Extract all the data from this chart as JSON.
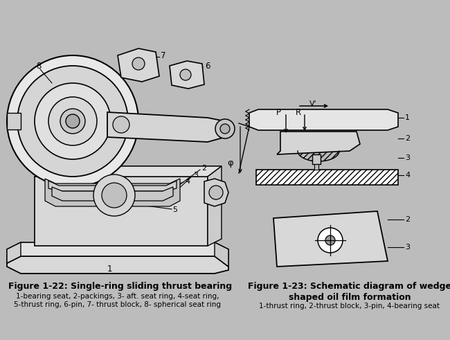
{
  "background_color": "#bcbcbc",
  "fig_width": 6.5,
  "fig_height": 4.91,
  "dpi": 100,
  "title1": "Figure 1-22: Single-ring sliding thrust bearing",
  "caption1_line1": "1-bearing seat, 2-packings, 3- aft. seat ring, 4-seat ring,",
  "caption1_line2": "5-thrust ring, 6-pin, 7- thrust block, 8- spherical seat ring",
  "title2_line1": "Figure 1-23: Schematic diagram of wedge-",
  "title2_line2": "shaped oil film formation",
  "caption2_line1": "1-thrust ring, 2-thrust block, 3-pin, 4-bearing seat",
  "title_fontsize": 9.0,
  "caption_fontsize": 7.5
}
